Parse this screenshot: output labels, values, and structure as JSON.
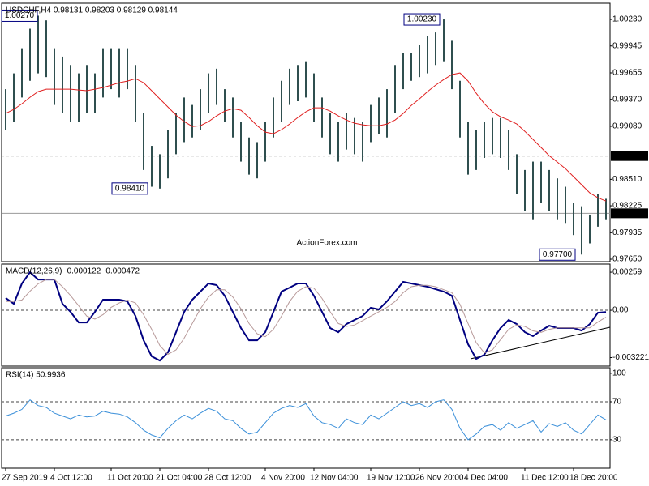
{
  "chart_data": [
    {
      "type": "ohlc",
      "title": "USDCHF,H4  0.98131 0.98203 0.98129 0.98144",
      "watermark": "ActionForex.com",
      "categories": [
        "27 Sep 2019",
        null,
        null,
        null,
        null,
        null,
        "4 Oct 12:00",
        null,
        null,
        null,
        null,
        null,
        null,
        "11 Oct 20:00",
        null,
        null,
        null,
        null,
        null,
        "21 Oct 04:00",
        null,
        null,
        null,
        null,
        null,
        "28 Oct 12:00",
        null,
        null,
        null,
        null,
        null,
        null,
        "4 Nov 20:00",
        null,
        null,
        null,
        null,
        null,
        "12 Nov 04:00",
        null,
        null,
        null,
        null,
        null,
        null,
        "19 Nov 12:00",
        null,
        null,
        null,
        null,
        null,
        "26 Nov 20:00",
        null,
        null,
        null,
        null,
        null,
        "4 Dec 04:00",
        null,
        null,
        null,
        null,
        null,
        null,
        "11 Dec 12:00",
        null,
        null,
        null,
        null,
        null,
        "18 Dec 20:00",
        null,
        null,
        null,
        null
      ],
      "high": [
        0.9948,
        0.9965,
        0.9992,
        1.0013,
        1.0027,
        1.0022,
        0.9992,
        0.9983,
        0.9974,
        0.9965,
        0.9974,
        0.9965,
        0.9992,
        0.9992,
        0.9992,
        0.9992,
        0.9974,
        0.9922,
        0.9887,
        0.9878,
        0.9904,
        0.9922,
        0.9939,
        0.9931,
        0.9948,
        0.9965,
        0.997,
        0.9948,
        0.9939,
        0.9913,
        0.9896,
        0.9891,
        0.9913,
        0.9939,
        0.9957,
        0.997,
        0.9974,
        0.9978,
        0.9965,
        0.9939,
        0.9922,
        0.9913,
        0.9922,
        0.9917,
        0.9913,
        0.9931,
        0.9939,
        0.9948,
        0.9974,
        0.9987,
        0.9987,
        0.9996,
        1.0005,
        1.0009,
        1.0023,
        1.0,
        0.9957,
        0.9913,
        0.9904,
        0.9913,
        0.9917,
        0.9917,
        0.9904,
        0.9878,
        0.9861,
        0.987,
        0.987,
        0.9861,
        0.9852,
        0.9843,
        0.9826,
        0.9822,
        0.9813,
        0.9835,
        0.983
      ],
      "low": [
        0.9904,
        0.9913,
        0.9939,
        0.9957,
        0.9965,
        0.9961,
        0.9931,
        0.9922,
        0.9913,
        0.9913,
        0.9922,
        0.9922,
        0.9939,
        0.9948,
        0.9939,
        0.9948,
        0.9913,
        0.9861,
        0.9843,
        0.9841,
        0.9852,
        0.9878,
        0.9891,
        0.9896,
        0.9904,
        0.9922,
        0.9931,
        0.9913,
        0.9896,
        0.987,
        0.9856,
        0.9852,
        0.987,
        0.9896,
        0.9913,
        0.9931,
        0.9935,
        0.9939,
        0.9913,
        0.9896,
        0.9878,
        0.987,
        0.9883,
        0.9878,
        0.987,
        0.9891,
        0.99,
        0.9896,
        0.9922,
        0.9948,
        0.9957,
        0.9961,
        0.9965,
        0.9974,
        0.9978,
        0.9948,
        0.9896,
        0.9856,
        0.9861,
        0.9874,
        0.9878,
        0.9874,
        0.9861,
        0.9835,
        0.9817,
        0.9808,
        0.9826,
        0.9817,
        0.9808,
        0.9804,
        0.9791,
        0.977,
        0.9782,
        0.98,
        0.9808
      ],
      "color": "#2f4f4f",
      "series": [
        {
          "color": "#e02020",
          "values": [
            0.99218,
            0.99262,
            0.99323,
            0.99393,
            0.99454,
            0.9948,
            0.9948,
            0.9948,
            0.9948,
            0.99471,
            0.99463,
            0.9948,
            0.99497,
            0.99523,
            0.9955,
            0.99567,
            0.99593,
            0.9955,
            0.99463,
            0.99375,
            0.99288,
            0.99201,
            0.99131,
            0.99079,
            0.99087,
            0.99131,
            0.99192,
            0.99244,
            0.99271,
            0.99253,
            0.99175,
            0.99087,
            0.99018,
            0.99,
            0.99044,
            0.99105,
            0.99175,
            0.99236,
            0.99279,
            0.99279,
            0.99244,
            0.99192,
            0.99148,
            0.99114,
            0.99096,
            0.99087,
            0.99087,
            0.99105,
            0.99148,
            0.99218,
            0.99305,
            0.99375,
            0.99454,
            0.99523,
            0.99584,
            0.99637,
            0.99654,
            0.99567,
            0.99436,
            0.99323,
            0.99236,
            0.99183,
            0.99148,
            0.99105,
            0.99026,
            0.98939,
            0.98852,
            0.98764,
            0.98695,
            0.98625,
            0.98538,
            0.98451,
            0.98364,
            0.98311,
            0.98276
          ]
        }
      ],
      "ylim": [
        0.97624,
        1.00396
      ],
      "yticks": [
        {
          "value": 1.0023,
          "label": "1.00230"
        },
        {
          "value": 0.99945,
          "label": "0.99945"
        },
        {
          "value": 0.99655,
          "label": "0.99655"
        },
        {
          "value": 0.9937,
          "label": "0.99370"
        },
        {
          "value": 0.9908,
          "label": "0.99080"
        },
        {
          "value": 0.9851,
          "label": "0.98510"
        },
        {
          "value": 0.98225,
          "label": "0.98225"
        },
        {
          "value": 0.97935,
          "label": "0.97935"
        },
        {
          "value": 0.9765,
          "label": "0.97650"
        }
      ],
      "levels": [
        {
          "value": 0.9876,
          "label": "0.98760",
          "dashed": true
        },
        {
          "value": 0.98144,
          "label": "0.98144",
          "dashed": false
        }
      ],
      "annotations": [
        {
          "value": 1.0027,
          "label": "1.00270"
        },
        {
          "value": 0.9841,
          "label": "0.98410"
        },
        {
          "value": 1.0023,
          "label": "1.00230"
        },
        {
          "value": 0.977,
          "label": "0.97700"
        }
      ]
    },
    {
      "type": "line",
      "title": "MACD(12,26,9) -0.000122 -0.000472",
      "series": [
        {
          "color": "#000080",
          "values": [
            0.00083,
            0.00044,
            0.00182,
            0.00259,
            0.00209,
            0.00209,
            0.00209,
            0.00044,
            -0.00011,
            -0.00083,
            -0.00083,
            -0.00011,
            0.00072,
            0.00072,
            0.00072,
            0.00061,
            -0.00039,
            -0.00204,
            -0.00314,
            -0.00342,
            -0.00287,
            -0.00149,
            -0.00011,
            0.00072,
            0.00127,
            0.00182,
            0.00171,
            0.00099,
            -0.00011,
            -0.00121,
            -0.00204,
            -0.00204,
            -0.00149,
            -0.00011,
            0.00127,
            0.00154,
            0.00182,
            0.00182,
            0.00099,
            -0.00011,
            -0.00121,
            -0.00149,
            -0.00094,
            -0.00066,
            -0.00039,
            0.00017,
            6e-05,
            0.00061,
            0.00127,
            0.00193,
            0.00182,
            0.00171,
            0.0016,
            0.00143,
            0.00127,
            0.00099,
            -0.00066,
            -0.00231,
            -0.00331,
            -0.00303,
            -0.00204,
            -0.00121,
            -0.00066,
            -0.00094,
            -0.00149,
            -0.00176,
            -0.00138,
            -0.00105,
            -0.00121,
            -0.00121,
            -0.00121,
            -0.00138,
            -0.00094,
            -0.00017,
            -0.000122
          ]
        },
        {
          "color": "#b89a9a",
          "values": [
            0.0006,
            0.0006,
            0.0007,
            0.0013,
            0.0018,
            0.0021,
            0.0021,
            0.0016,
            0.001,
            0.0003,
            -0.0004,
            -0.0006,
            -0.0003,
            0.0002,
            0.0005,
            0.0007,
            0.0005,
            -0.0003,
            -0.0013,
            -0.0024,
            -0.003,
            -0.0027,
            -0.0019,
            -0.0009,
            0.0001,
            0.0009,
            0.0014,
            0.0014,
            0.0009,
            0.0001,
            -0.0009,
            -0.0016,
            -0.0018,
            -0.0013,
            -0.0004,
            0.0006,
            0.0013,
            0.0016,
            0.0015,
            0.0008,
            -0.0001,
            -0.0009,
            -0.0011,
            -0.001,
            -0.0007,
            -0.0004,
            -0.0001,
            0.0002,
            0.0006,
            0.0012,
            0.0016,
            0.0017,
            0.0017,
            0.0016,
            0.0014,
            0.0012,
            0.0004,
            -0.0009,
            -0.0022,
            -0.0029,
            -0.0027,
            -0.002,
            -0.0013,
            -0.001,
            -0.0011,
            -0.0014,
            -0.0015,
            -0.0013,
            -0.0012,
            -0.0012,
            -0.0012,
            -0.0012,
            -0.0012,
            -0.0008,
            -0.000472
          ]
        }
      ],
      "ylim": [
        -0.0038,
        0.00309
      ],
      "yticks": [
        {
          "value": 0.00259,
          "label": "0.00259"
        },
        {
          "value": 0,
          "label": "0.00"
        },
        {
          "value": -0.003221,
          "label": "-0.003221"
        }
      ],
      "levels": [
        0
      ]
    },
    {
      "type": "line",
      "title": "RSI(14) 50.9936",
      "series": [
        {
          "color": "#3a8fd9",
          "values": [
            55,
            58,
            62,
            72,
            66,
            64,
            58,
            55,
            52,
            56,
            54,
            55,
            60,
            58,
            57,
            54,
            48,
            40,
            35,
            32,
            42,
            50,
            56,
            52,
            58,
            63,
            60,
            52,
            50,
            42,
            36,
            38,
            48,
            58,
            63,
            66,
            64,
            68,
            55,
            48,
            46,
            42,
            52,
            48,
            46,
            56,
            52,
            58,
            64,
            70,
            66,
            68,
            64,
            70,
            72,
            62,
            42,
            30,
            36,
            44,
            46,
            40,
            48,
            42,
            46,
            50,
            38,
            47,
            44,
            48,
            40,
            36,
            46,
            56,
            50.9936
          ]
        }
      ],
      "ylim": [
        0,
        105
      ],
      "yticks": [
        100,
        70,
        30
      ],
      "levels": [
        70,
        30
      ]
    }
  ]
}
